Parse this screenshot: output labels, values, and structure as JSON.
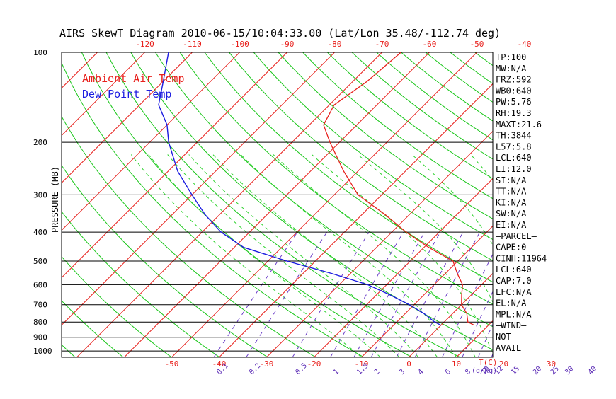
{
  "chart_data": {
    "type": "line",
    "title": "AIRS SkewT Diagram 2010-06-15/10:04:33.00 (Lat/Lon 35.48/-112.74 deg)",
    "ylabel": "PRESSURE (MB)",
    "y_scale": "log",
    "ylim": [
      1050,
      100
    ],
    "y_ticks": [
      100,
      200,
      300,
      400,
      500,
      600,
      700,
      800,
      900,
      1000
    ],
    "bottom_temp_ticks": [
      -50,
      -40,
      -30,
      -20,
      -10,
      0,
      10,
      20,
      30
    ],
    "bottom_temp_unit": "T(C)",
    "top_temp_ticks": [
      -120,
      -110,
      -100,
      -90,
      -80,
      -70,
      -60,
      -50,
      -40
    ],
    "mixing_ratio_labels": [
      "0.1",
      "0.2",
      "0.5",
      "1",
      "1.5",
      "2",
      "3",
      "4",
      "6",
      "8",
      "10",
      "12",
      "15",
      "20",
      "25",
      "30",
      "40"
    ],
    "mixing_ratio_unit": "(g/kg)",
    "grid": true,
    "legend_position": "top-left",
    "series": [
      {
        "name": "Ambient Air Temp",
        "color": "#e8201c",
        "pressure": [
          100,
          125,
          150,
          175,
          200,
          250,
          300,
          350,
          400,
          450,
          500,
          550,
          600,
          650,
          700,
          750,
          800,
          820
        ],
        "temp": [
          -66,
          -67,
          -69,
          -67,
          -62,
          -53,
          -45,
          -35,
          -27,
          -19,
          -11,
          -7.5,
          -4,
          -2,
          0,
          3,
          5,
          7
        ]
      },
      {
        "name": "Dew Point Temp",
        "color": "#1c1ce0",
        "pressure": [
          100,
          125,
          150,
          175,
          200,
          250,
          300,
          350,
          400,
          450,
          500,
          550,
          600,
          650,
          700,
          750,
          800,
          820
        ],
        "temp": [
          -115,
          -110,
          -106,
          -100,
          -96,
          -88,
          -80,
          -73,
          -66,
          -58,
          -46,
          -34,
          -24,
          -17,
          -11,
          -6,
          -2,
          0
        ]
      }
    ]
  },
  "indices": [
    "TP:100",
    "MW:N/A",
    "FRZ:592",
    "WB0:640",
    "PW:5.76",
    "RH:19.3",
    "MAXT:21.6",
    "TH:3844",
    "L57:5.8",
    "LCL:640",
    "LI:12.0",
    "SI:N/A",
    "TT:N/A",
    "KI:N/A",
    "SW:N/A",
    "EI:N/A",
    "—PARCEL—",
    "CAPE:0",
    "CINH:11964",
    "LCL:640",
    "CAP:7.0",
    "LFC:N/A",
    "EL:N/A",
    "MPL:N/A",
    "—WIND—",
    "NOT",
    "AVAIL"
  ],
  "colors": {
    "axis": "#000000",
    "isotherm": "#e8201c",
    "adiabat": "#19c619",
    "moist_adiabat": "#2fd32f",
    "mixing_ratio": "#6a3cc8",
    "temp_tick": "#e8201c",
    "mixing_tick": "#5a2ab5",
    "pressure_tick": "#000000"
  }
}
